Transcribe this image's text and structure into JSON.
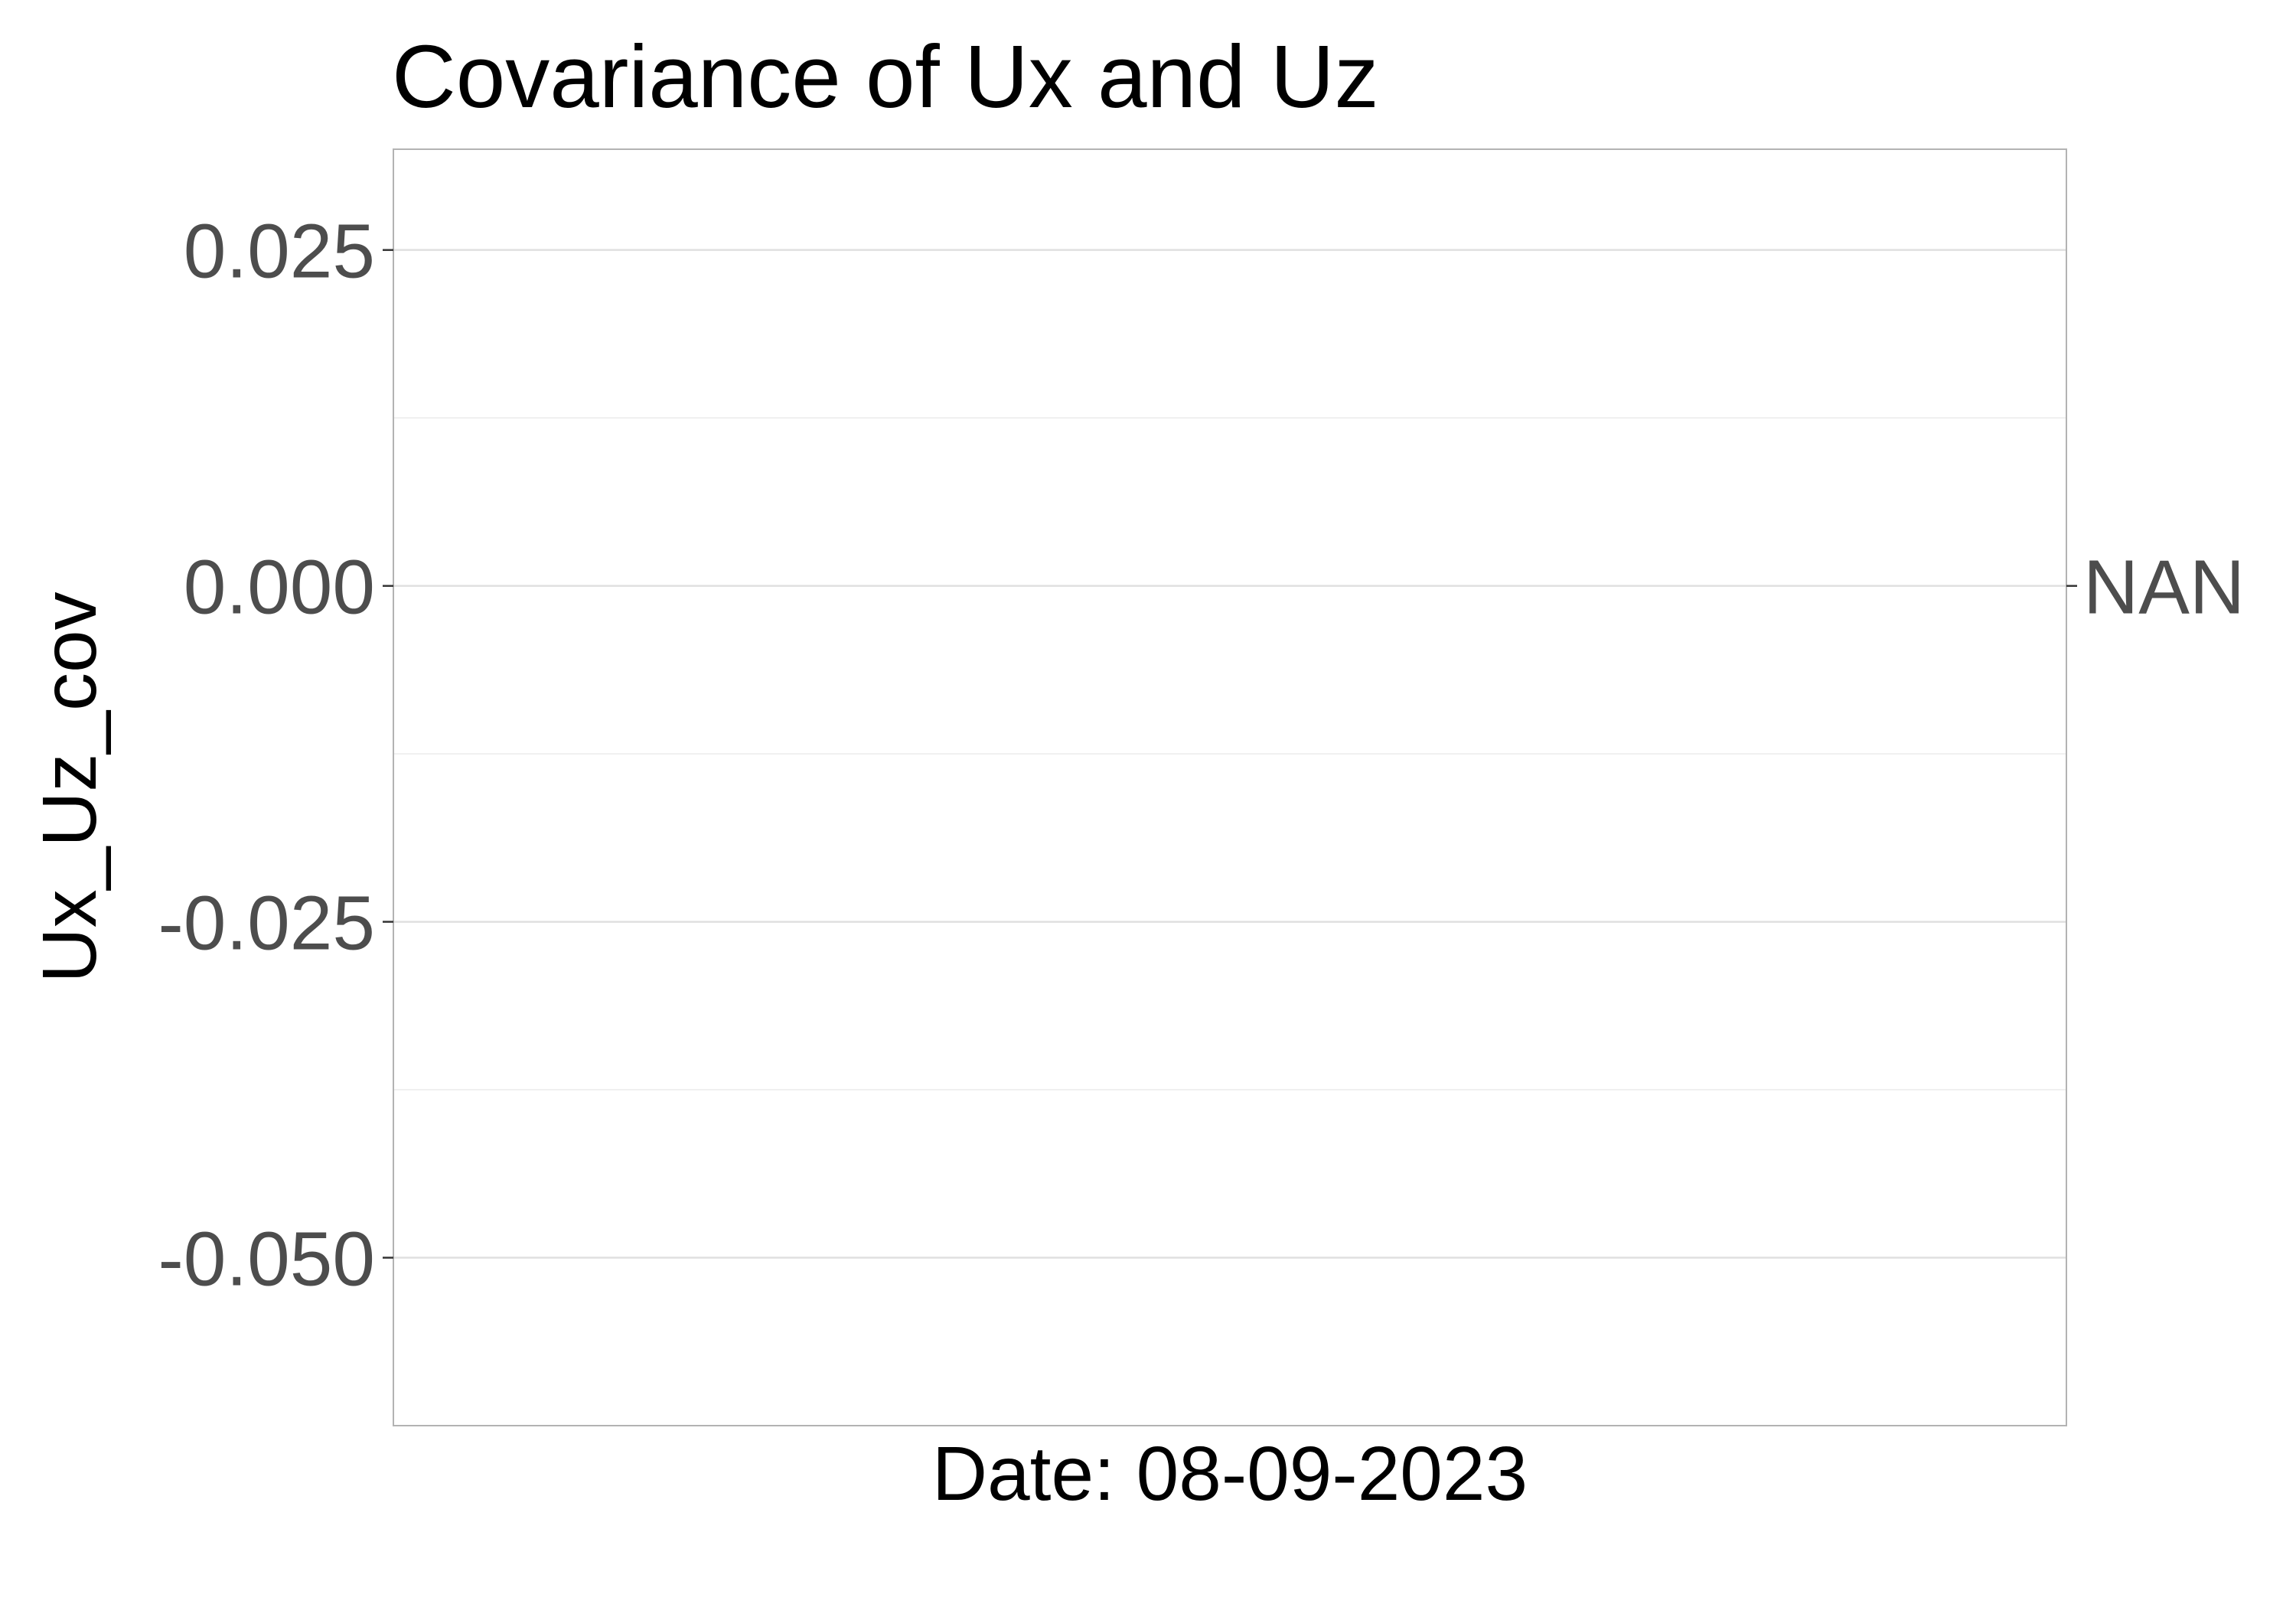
{
  "chart_data": {
    "type": "line",
    "title": "Covariance of Ux and Uz",
    "xlabel": "Date: 08-09-2023",
    "ylabel": "Ux_Uz_cov",
    "ylim": [
      -0.0625,
      0.0325
    ],
    "y_ticks": [
      {
        "value": 0.025,
        "label": "0.025"
      },
      {
        "value": 0.0,
        "label": "0.000"
      },
      {
        "value": -0.025,
        "label": "-0.025"
      },
      {
        "value": -0.05,
        "label": "-0.050"
      }
    ],
    "y_minor_ticks": [
      0.0125,
      -0.0125,
      -0.0375,
      -0.0625
    ],
    "series": [
      {
        "label_at_end": "NAN",
        "y": 0.0,
        "values": []
      }
    ],
    "grid": true,
    "legend": "none",
    "colors": {
      "grid": "#ebebeb",
      "panel_border": "#b3b3b3",
      "tick_text": "#4d4d4d"
    }
  }
}
